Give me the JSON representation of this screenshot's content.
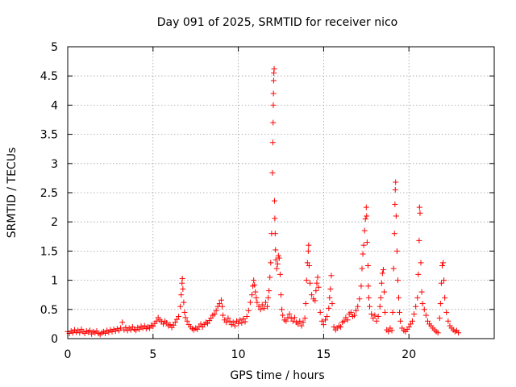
{
  "chart_data": {
    "type": "scatter",
    "title": "Day 091 of 2025, SRMTID for receiver nico",
    "xlabel": "GPS time / hours",
    "ylabel": "SRMTID / TECUs",
    "xlim": [
      0,
      25
    ],
    "ylim": [
      0,
      5
    ],
    "x_ticks": [
      0,
      5,
      10,
      15,
      20
    ],
    "x_tick_labels": [
      "0",
      "5",
      "10",
      "15",
      "20"
    ],
    "y_ticks": [
      0,
      0.5,
      1,
      1.5,
      2,
      2.5,
      3,
      3.5,
      4,
      4.5,
      5
    ],
    "y_tick_labels": [
      "0",
      "0.5",
      "1",
      "1.5",
      "2",
      "2.5",
      "3",
      "3.5",
      "4",
      "4.5",
      "5"
    ],
    "grid": true,
    "marker": "+",
    "color": "#ff0000",
    "series": [
      {
        "name": "SRMTID",
        "points": [
          [
            0.0,
            0.12
          ],
          [
            0.1,
            0.09
          ],
          [
            0.2,
            0.13
          ],
          [
            0.3,
            0.1
          ],
          [
            0.4,
            0.15
          ],
          [
            0.5,
            0.11
          ],
          [
            0.6,
            0.14
          ],
          [
            0.7,
            0.1
          ],
          [
            0.8,
            0.16
          ],
          [
            0.9,
            0.12
          ],
          [
            1.0,
            0.09
          ],
          [
            1.1,
            0.13
          ],
          [
            1.2,
            0.11
          ],
          [
            1.3,
            0.14
          ],
          [
            1.4,
            0.08
          ],
          [
            1.5,
            0.12
          ],
          [
            1.6,
            0.1
          ],
          [
            1.7,
            0.13
          ],
          [
            1.8,
            0.09
          ],
          [
            1.9,
            0.07
          ],
          [
            2.0,
            0.1
          ],
          [
            2.1,
            0.12
          ],
          [
            2.2,
            0.09
          ],
          [
            2.3,
            0.14
          ],
          [
            2.4,
            0.11
          ],
          [
            2.5,
            0.15
          ],
          [
            2.6,
            0.12
          ],
          [
            2.7,
            0.16
          ],
          [
            2.8,
            0.13
          ],
          [
            2.9,
            0.17
          ],
          [
            3.0,
            0.14
          ],
          [
            3.1,
            0.18
          ],
          [
            3.2,
            0.28
          ],
          [
            3.3,
            0.15
          ],
          [
            3.4,
            0.19
          ],
          [
            3.5,
            0.14
          ],
          [
            3.6,
            0.18
          ],
          [
            3.7,
            0.15
          ],
          [
            3.8,
            0.2
          ],
          [
            3.9,
            0.16
          ],
          [
            4.0,
            0.14
          ],
          [
            4.1,
            0.19
          ],
          [
            4.2,
            0.16
          ],
          [
            4.3,
            0.21
          ],
          [
            4.4,
            0.18
          ],
          [
            4.5,
            0.22
          ],
          [
            4.6,
            0.17
          ],
          [
            4.7,
            0.2
          ],
          [
            4.8,
            0.18
          ],
          [
            4.9,
            0.23
          ],
          [
            5.0,
            0.21
          ],
          [
            5.1,
            0.26
          ],
          [
            5.2,
            0.3
          ],
          [
            5.3,
            0.36
          ],
          [
            5.4,
            0.32
          ],
          [
            5.5,
            0.29
          ],
          [
            5.6,
            0.25
          ],
          [
            5.7,
            0.3
          ],
          [
            5.8,
            0.27
          ],
          [
            5.9,
            0.22
          ],
          [
            6.0,
            0.24
          ],
          [
            6.1,
            0.19
          ],
          [
            6.2,
            0.23
          ],
          [
            6.3,
            0.28
          ],
          [
            6.4,
            0.33
          ],
          [
            6.5,
            0.38
          ],
          [
            6.6,
            0.55
          ],
          [
            6.65,
            0.75
          ],
          [
            6.7,
            0.95
          ],
          [
            6.72,
            1.03
          ],
          [
            6.75,
            0.85
          ],
          [
            6.8,
            0.62
          ],
          [
            6.85,
            0.45
          ],
          [
            6.9,
            0.36
          ],
          [
            7.0,
            0.3
          ],
          [
            7.1,
            0.24
          ],
          [
            7.2,
            0.2
          ],
          [
            7.3,
            0.17
          ],
          [
            7.4,
            0.15
          ],
          [
            7.5,
            0.18
          ],
          [
            7.6,
            0.16
          ],
          [
            7.7,
            0.21
          ],
          [
            7.8,
            0.25
          ],
          [
            7.9,
            0.2
          ],
          [
            8.0,
            0.24
          ],
          [
            8.1,
            0.28
          ],
          [
            8.2,
            0.26
          ],
          [
            8.3,
            0.31
          ],
          [
            8.4,
            0.35
          ],
          [
            8.5,
            0.4
          ],
          [
            8.6,
            0.42
          ],
          [
            8.7,
            0.48
          ],
          [
            8.8,
            0.55
          ],
          [
            8.9,
            0.6
          ],
          [
            9.0,
            0.66
          ],
          [
            9.05,
            0.55
          ],
          [
            9.1,
            0.4
          ],
          [
            9.2,
            0.32
          ],
          [
            9.3,
            0.28
          ],
          [
            9.4,
            0.35
          ],
          [
            9.5,
            0.3
          ],
          [
            9.6,
            0.24
          ],
          [
            9.7,
            0.28
          ],
          [
            9.8,
            0.22
          ],
          [
            9.9,
            0.3
          ],
          [
            10.0,
            0.26
          ],
          [
            10.1,
            0.32
          ],
          [
            10.2,
            0.27
          ],
          [
            10.3,
            0.34
          ],
          [
            10.4,
            0.29
          ],
          [
            10.5,
            0.38
          ],
          [
            10.6,
            0.48
          ],
          [
            10.7,
            0.62
          ],
          [
            10.8,
            0.75
          ],
          [
            10.85,
            0.9
          ],
          [
            10.9,
            1.0
          ],
          [
            10.95,
            0.92
          ],
          [
            11.0,
            0.8
          ],
          [
            11.05,
            0.7
          ],
          [
            11.1,
            0.62
          ],
          [
            11.2,
            0.55
          ],
          [
            11.3,
            0.5
          ],
          [
            11.4,
            0.58
          ],
          [
            11.5,
            0.52
          ],
          [
            11.6,
            0.62
          ],
          [
            11.7,
            0.55
          ],
          [
            11.75,
            0.7
          ],
          [
            11.8,
            0.82
          ],
          [
            11.85,
            1.05
          ],
          [
            11.9,
            1.3
          ],
          [
            11.95,
            1.8
          ],
          [
            12.0,
            2.84
          ],
          [
            12.02,
            3.36
          ],
          [
            12.04,
            3.7
          ],
          [
            12.05,
            4.0
          ],
          [
            12.06,
            4.2
          ],
          [
            12.07,
            4.42
          ],
          [
            12.08,
            4.55
          ],
          [
            12.1,
            4.62
          ],
          [
            12.12,
            2.36
          ],
          [
            12.14,
            2.06
          ],
          [
            12.16,
            1.8
          ],
          [
            12.18,
            1.52
          ],
          [
            12.2,
            1.35
          ],
          [
            12.25,
            1.2
          ],
          [
            12.3,
            1.28
          ],
          [
            12.35,
            1.42
          ],
          [
            12.4,
            1.38
          ],
          [
            12.45,
            1.1
          ],
          [
            12.5,
            0.75
          ],
          [
            12.55,
            0.5
          ],
          [
            12.6,
            0.4
          ],
          [
            12.7,
            0.32
          ],
          [
            12.8,
            0.3
          ],
          [
            12.9,
            0.36
          ],
          [
            13.0,
            0.42
          ],
          [
            13.1,
            0.35
          ],
          [
            13.2,
            0.3
          ],
          [
            13.3,
            0.36
          ],
          [
            13.4,
            0.28
          ],
          [
            13.5,
            0.25
          ],
          [
            13.6,
            0.3
          ],
          [
            13.7,
            0.22
          ],
          [
            13.8,
            0.28
          ],
          [
            13.9,
            0.35
          ],
          [
            13.95,
            0.6
          ],
          [
            14.0,
            1.0
          ],
          [
            14.05,
            1.3
          ],
          [
            14.1,
            1.5
          ],
          [
            14.12,
            1.6
          ],
          [
            14.15,
            1.25
          ],
          [
            14.2,
            0.95
          ],
          [
            14.3,
            0.75
          ],
          [
            14.4,
            0.68
          ],
          [
            14.5,
            0.65
          ],
          [
            14.55,
            0.82
          ],
          [
            14.6,
            0.95
          ],
          [
            14.65,
            1.05
          ],
          [
            14.7,
            0.88
          ],
          [
            14.8,
            0.45
          ],
          [
            14.9,
            0.3
          ],
          [
            15.0,
            0.24
          ],
          [
            15.1,
            0.32
          ],
          [
            15.2,
            0.38
          ],
          [
            15.3,
            0.52
          ],
          [
            15.35,
            0.7
          ],
          [
            15.4,
            0.85
          ],
          [
            15.45,
            1.08
          ],
          [
            15.5,
            0.6
          ],
          [
            15.6,
            0.2
          ],
          [
            15.7,
            0.15
          ],
          [
            15.8,
            0.18
          ],
          [
            15.9,
            0.22
          ],
          [
            16.0,
            0.2
          ],
          [
            16.1,
            0.28
          ],
          [
            16.2,
            0.3
          ],
          [
            16.3,
            0.36
          ],
          [
            16.4,
            0.32
          ],
          [
            16.5,
            0.42
          ],
          [
            16.6,
            0.45
          ],
          [
            16.7,
            0.38
          ],
          [
            16.8,
            0.4
          ],
          [
            16.9,
            0.48
          ],
          [
            17.0,
            0.55
          ],
          [
            17.1,
            0.68
          ],
          [
            17.2,
            0.9
          ],
          [
            17.25,
            1.2
          ],
          [
            17.3,
            1.45
          ],
          [
            17.35,
            1.6
          ],
          [
            17.4,
            1.85
          ],
          [
            17.45,
            2.05
          ],
          [
            17.5,
            2.25
          ],
          [
            17.52,
            2.1
          ],
          [
            17.55,
            1.65
          ],
          [
            17.6,
            1.25
          ],
          [
            17.62,
            0.9
          ],
          [
            17.65,
            0.7
          ],
          [
            17.7,
            0.55
          ],
          [
            17.8,
            0.42
          ],
          [
            17.9,
            0.35
          ],
          [
            18.0,
            0.4
          ],
          [
            18.1,
            0.3
          ],
          [
            18.2,
            0.38
          ],
          [
            18.3,
            0.55
          ],
          [
            18.35,
            0.7
          ],
          [
            18.4,
            0.95
          ],
          [
            18.45,
            1.12
          ],
          [
            18.5,
            1.18
          ],
          [
            18.55,
            0.8
          ],
          [
            18.6,
            0.45
          ],
          [
            18.7,
            0.15
          ],
          [
            18.8,
            0.12
          ],
          [
            18.9,
            0.18
          ],
          [
            19.0,
            0.14
          ],
          [
            19.05,
            0.45
          ],
          [
            19.1,
            1.2
          ],
          [
            19.15,
            1.8
          ],
          [
            19.18,
            2.3
          ],
          [
            19.2,
            2.55
          ],
          [
            19.22,
            2.68
          ],
          [
            19.25,
            2.1
          ],
          [
            19.3,
            1.5
          ],
          [
            19.35,
            1.0
          ],
          [
            19.4,
            0.7
          ],
          [
            19.45,
            0.45
          ],
          [
            19.5,
            0.3
          ],
          [
            19.6,
            0.18
          ],
          [
            19.7,
            0.14
          ],
          [
            19.8,
            0.12
          ],
          [
            19.9,
            0.16
          ],
          [
            20.0,
            0.2
          ],
          [
            20.1,
            0.25
          ],
          [
            20.2,
            0.3
          ],
          [
            20.3,
            0.42
          ],
          [
            20.4,
            0.55
          ],
          [
            20.5,
            0.7
          ],
          [
            20.55,
            1.1
          ],
          [
            20.6,
            1.68
          ],
          [
            20.62,
            2.25
          ],
          [
            20.65,
            2.15
          ],
          [
            20.7,
            1.3
          ],
          [
            20.75,
            0.8
          ],
          [
            20.8,
            0.6
          ],
          [
            20.9,
            0.5
          ],
          [
            21.0,
            0.4
          ],
          [
            21.1,
            0.3
          ],
          [
            21.2,
            0.25
          ],
          [
            21.3,
            0.22
          ],
          [
            21.4,
            0.18
          ],
          [
            21.5,
            0.15
          ],
          [
            21.6,
            0.12
          ],
          [
            21.7,
            0.1
          ],
          [
            21.8,
            0.35
          ],
          [
            21.85,
            0.6
          ],
          [
            21.9,
            0.95
          ],
          [
            21.95,
            1.25
          ],
          [
            22.0,
            1.3
          ],
          [
            22.05,
            1.0
          ],
          [
            22.1,
            0.7
          ],
          [
            22.2,
            0.45
          ],
          [
            22.3,
            0.3
          ],
          [
            22.4,
            0.22
          ],
          [
            22.5,
            0.18
          ],
          [
            22.6,
            0.15
          ],
          [
            22.7,
            0.12
          ],
          [
            22.8,
            0.14
          ],
          [
            22.9,
            0.1
          ]
        ]
      }
    ]
  }
}
